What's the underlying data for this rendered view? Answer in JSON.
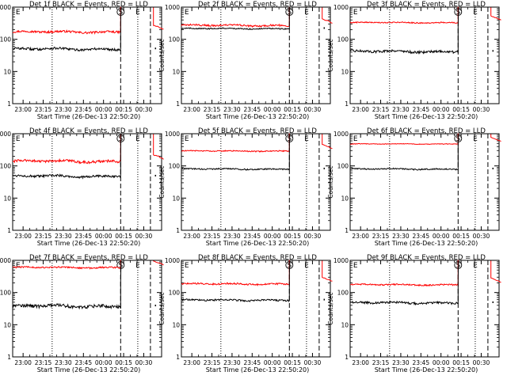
{
  "chart_data": [
    {
      "type": "line",
      "title": "Det 1f BLACK = Events, RED = LLD",
      "xlabel": "Start Time (26-Dec-13 22:50:20)",
      "ylabel": "Counts/sec",
      "x_ticks": [
        "23:00",
        "23:15",
        "23:30",
        "23:45",
        "00:00",
        "00:15",
        "00:30"
      ],
      "y_ticks": [
        "1",
        "10",
        "100",
        "1000"
      ],
      "ylim": [
        1,
        1000
      ],
      "y_scale": "log",
      "markers": [
        "E",
        "S",
        "E"
      ],
      "series": [
        {
          "color": "#ff0000",
          "baseline": 170,
          "amp": 18,
          "trend": 0.05
        },
        {
          "color": "#000000",
          "baseline": 50,
          "amp": 6,
          "trend": 0.0
        }
      ]
    },
    {
      "type": "line",
      "title": "Det 2f BLACK = Events, RED = LLD",
      "xlabel": "Start Time (26-Dec-13 22:50:20)",
      "ylabel": "Counts/sec",
      "x_ticks": [
        "23:00",
        "23:15",
        "23:30",
        "23:45",
        "00:00",
        "00:15",
        "00:30"
      ],
      "y_ticks": [
        "1",
        "10",
        "100",
        "1000"
      ],
      "ylim": [
        1,
        1000
      ],
      "y_scale": "log",
      "markers": [
        "E",
        "S",
        "E"
      ],
      "series": [
        {
          "color": "#ff0000",
          "baseline": 270,
          "amp": 25,
          "trend": 0.0
        },
        {
          "color": "#000000",
          "baseline": 215,
          "amp": 12,
          "trend": 0.0
        }
      ]
    },
    {
      "type": "line",
      "title": "Det 3f BLACK = Events, RED = LLD",
      "xlabel": "Start Time (26-Dec-13 22:50:20)",
      "ylabel": "Counts/sec",
      "x_ticks": [
        "23:00",
        "23:15",
        "23:30",
        "23:45",
        "00:00",
        "00:15",
        "00:30"
      ],
      "y_ticks": [
        "1",
        "10",
        "100",
        "1000"
      ],
      "ylim": [
        1,
        1000
      ],
      "y_scale": "log",
      "markers": [
        "E",
        "S",
        "E"
      ],
      "series": [
        {
          "color": "#ff0000",
          "baseline": 330,
          "amp": 18,
          "trend": 0.0
        },
        {
          "color": "#000000",
          "baseline": 42,
          "amp": 5,
          "trend": 0.0
        }
      ]
    },
    {
      "type": "line",
      "title": "Det 4f BLACK = Events, RED = LLD",
      "xlabel": "Start Time (26-Dec-13 22:50:20)",
      "ylabel": "Counts/sec",
      "x_ticks": [
        "23:00",
        "23:15",
        "23:30",
        "23:45",
        "00:00",
        "00:15",
        "00:30"
      ],
      "y_ticks": [
        "1",
        "10",
        "100",
        "1000"
      ],
      "ylim": [
        1,
        1000
      ],
      "y_scale": "log",
      "markers": [
        "E",
        "S",
        "E"
      ],
      "series": [
        {
          "color": "#ff0000",
          "baseline": 140,
          "amp": 18,
          "trend": 0.0
        },
        {
          "color": "#000000",
          "baseline": 48,
          "amp": 6,
          "trend": 0.0
        }
      ]
    },
    {
      "type": "line",
      "title": "Det 5f BLACK = Events, RED = LLD",
      "xlabel": "Start Time (26-Dec-13 22:50:20)",
      "ylabel": "Counts/sec",
      "x_ticks": [
        "23:00",
        "23:15",
        "23:30",
        "23:45",
        "00:00",
        "00:15",
        "00:30"
      ],
      "y_ticks": [
        "1",
        "10",
        "100",
        "1000"
      ],
      "ylim": [
        1,
        1000
      ],
      "y_scale": "log",
      "markers": [
        "E",
        "S",
        "E"
      ],
      "series": [
        {
          "color": "#ff0000",
          "baseline": 290,
          "amp": 15,
          "trend": 0.0
        },
        {
          "color": "#000000",
          "baseline": 80,
          "amp": 5,
          "trend": 0.0
        }
      ]
    },
    {
      "type": "line",
      "title": "Det 6f BLACK = Events, RED = LLD",
      "xlabel": "Start Time (26-Dec-13 22:50:20)",
      "ylabel": "Counts/sec",
      "x_ticks": [
        "23:00",
        "23:15",
        "23:30",
        "23:45",
        "00:00",
        "00:15",
        "00:30"
      ],
      "y_ticks": [
        "1",
        "10",
        "100",
        "1000"
      ],
      "ylim": [
        1,
        1000
      ],
      "y_scale": "log",
      "markers": [
        "E",
        "S",
        "E"
      ],
      "series": [
        {
          "color": "#ff0000",
          "baseline": 480,
          "amp": 15,
          "trend": 0.0
        },
        {
          "color": "#000000",
          "baseline": 80,
          "amp": 5,
          "trend": 0.0
        }
      ]
    },
    {
      "type": "line",
      "title": "Det 7f BLACK = Events, RED = LLD",
      "xlabel": "Start Time (26-Dec-13 22:50:20)",
      "ylabel": "Counts/sec",
      "x_ticks": [
        "23:00",
        "23:15",
        "23:30",
        "23:45",
        "00:00",
        "00:15",
        "00:30"
      ],
      "y_ticks": [
        "1",
        "10",
        "100",
        "1000"
      ],
      "ylim": [
        1,
        1000
      ],
      "y_scale": "log",
      "markers": [
        "E",
        "S",
        "E"
      ],
      "series": [
        {
          "color": "#ff0000",
          "baseline": 600,
          "amp": 45,
          "trend": 0.0
        },
        {
          "color": "#000000",
          "baseline": 38,
          "amp": 6,
          "trend": 0.0
        }
      ]
    },
    {
      "type": "line",
      "title": "Det 8f BLACK = Events, RED = LLD",
      "xlabel": "Start Time (26-Dec-13 22:50:20)",
      "ylabel": "Counts/sec",
      "x_ticks": [
        "23:00",
        "23:15",
        "23:30",
        "23:45",
        "00:00",
        "00:15",
        "00:30"
      ],
      "y_ticks": [
        "1",
        "10",
        "100",
        "1000"
      ],
      "ylim": [
        1,
        1000
      ],
      "y_scale": "log",
      "markers": [
        "E",
        "S",
        "E"
      ],
      "series": [
        {
          "color": "#ff0000",
          "baseline": 185,
          "amp": 15,
          "trend": 0.0
        },
        {
          "color": "#000000",
          "baseline": 58,
          "amp": 5,
          "trend": 0.0
        }
      ]
    },
    {
      "type": "line",
      "title": "Det 9f BLACK = Events, RED = LLD",
      "xlabel": "Start Time (26-Dec-13 22:50:20)",
      "ylabel": "Counts/sec",
      "x_ticks": [
        "23:00",
        "23:15",
        "23:30",
        "23:45",
        "00:00",
        "00:15",
        "00:30"
      ],
      "y_ticks": [
        "1",
        "10",
        "100",
        "1000"
      ],
      "ylim": [
        1,
        1000
      ],
      "y_scale": "log",
      "markers": [
        "E",
        "S",
        "E"
      ],
      "series": [
        {
          "color": "#ff0000",
          "baseline": 175,
          "amp": 12,
          "trend": 0.0
        },
        {
          "color": "#000000",
          "baseline": 48,
          "amp": 5,
          "trend": 0.0
        }
      ]
    }
  ]
}
